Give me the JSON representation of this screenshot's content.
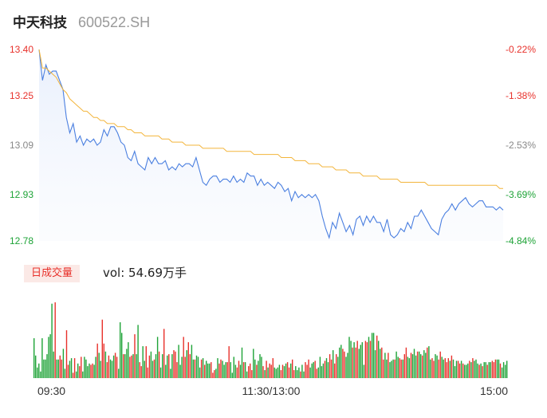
{
  "header": {
    "name": "中天科技",
    "code": "600522.SH"
  },
  "volume": {
    "badge": "日成交量",
    "label": "vol: 54.69万手"
  },
  "colors": {
    "price": "#4a7fe0",
    "avg": "#f3b53b",
    "up": "#e8312b",
    "down": "#1ea337",
    "label_neutral": "#888888"
  },
  "chart_data": [
    {
      "type": "line",
      "y_ticks": [
        "13.40",
        "13.25",
        "13.09",
        "12.93",
        "12.78"
      ],
      "pct_ticks": [
        "-0.22%",
        "-1.38%",
        "-2.53%",
        "-3.69%",
        "-4.84%"
      ],
      "ylim": [
        12.78,
        13.4
      ],
      "x_ticks": [
        "09:30",
        "11:30/13:00",
        "15:00"
      ],
      "grid": false,
      "series": [
        {
          "role": "price",
          "values": [
            13.4,
            13.3,
            13.35,
            13.32,
            13.33,
            13.33,
            13.3,
            13.27,
            13.18,
            13.13,
            13.16,
            13.1,
            13.12,
            13.09,
            13.11,
            13.1,
            13.11,
            13.09,
            13.1,
            13.14,
            13.12,
            13.15,
            13.15,
            13.13,
            13.1,
            13.09,
            13.05,
            13.04,
            13.07,
            13.03,
            13.02,
            13.01,
            13.05,
            13.03,
            13.05,
            13.03,
            13.03,
            13.04,
            13.01,
            13.02,
            13.01,
            13.03,
            13.02,
            13.03,
            13.03,
            13.02,
            13.05,
            13.01,
            12.97,
            12.96,
            12.98,
            12.99,
            12.99,
            12.97,
            12.98,
            12.98,
            12.97,
            12.99,
            12.97,
            12.98,
            12.97,
            13.0,
            12.99,
            12.99,
            12.96,
            12.98,
            12.96,
            12.97,
            12.96,
            12.95,
            12.97,
            12.96,
            12.94,
            12.95,
            12.91,
            12.94,
            12.92,
            12.93,
            12.92,
            12.93,
            12.92,
            12.93,
            12.91,
            12.86,
            12.82,
            12.79,
            12.84,
            12.82,
            12.87,
            12.84,
            12.81,
            12.83,
            12.8,
            12.85,
            12.86,
            12.83,
            12.86,
            12.84,
            12.86,
            12.84,
            12.84,
            12.81,
            12.85,
            12.8,
            12.79,
            12.8,
            12.82,
            12.81,
            12.84,
            12.82,
            12.86,
            12.86,
            12.88,
            12.86,
            12.84,
            12.82,
            12.81,
            12.8,
            12.85,
            12.87,
            12.88,
            12.9,
            12.88,
            12.9,
            12.91,
            12.92,
            12.9,
            12.89,
            12.9,
            12.91,
            12.91,
            12.89,
            12.89,
            12.89,
            12.88,
            12.89,
            12.88
          ],
          "color": "#4a7fe0"
        },
        {
          "role": "avg",
          "values": [
            13.4,
            13.34,
            13.34,
            13.33,
            13.32,
            13.31,
            13.29,
            13.27,
            13.26,
            13.24,
            13.23,
            13.22,
            13.21,
            13.2,
            13.2,
            13.19,
            13.18,
            13.18,
            13.17,
            13.17,
            13.16,
            13.16,
            13.16,
            13.15,
            13.15,
            13.15,
            13.14,
            13.14,
            13.13,
            13.13,
            13.13,
            13.12,
            13.12,
            13.12,
            13.12,
            13.12,
            13.11,
            13.11,
            13.11,
            13.1,
            13.1,
            13.1,
            13.1,
            13.09,
            13.09,
            13.09,
            13.09,
            13.09,
            13.08,
            13.08,
            13.08,
            13.08,
            13.08,
            13.08,
            13.08,
            13.07,
            13.07,
            13.07,
            13.07,
            13.07,
            13.07,
            13.07,
            13.07,
            13.06,
            13.06,
            13.06,
            13.06,
            13.06,
            13.06,
            13.06,
            13.06,
            13.05,
            13.05,
            13.05,
            13.05,
            13.04,
            13.04,
            13.04,
            13.04,
            13.03,
            13.03,
            13.03,
            13.03,
            13.02,
            13.02,
            13.02,
            13.02,
            13.01,
            13.01,
            13.01,
            13.01,
            13.0,
            13.0,
            13.0,
            13.0,
            12.99,
            12.99,
            12.99,
            12.99,
            12.99,
            12.98,
            12.98,
            12.98,
            12.98,
            12.98,
            12.98,
            12.97,
            12.97,
            12.97,
            12.97,
            12.97,
            12.97,
            12.97,
            12.97,
            12.96,
            12.96,
            12.96,
            12.96,
            12.96,
            12.96,
            12.96,
            12.96,
            12.96,
            12.96,
            12.96,
            12.96,
            12.96,
            12.96,
            12.96,
            12.96,
            12.96,
            12.96,
            12.96,
            12.96,
            12.96,
            12.95,
            12.95
          ],
          "color": "#f3b53b"
        }
      ]
    },
    {
      "type": "bar",
      "values": [
        30,
        17,
        8,
        11,
        5,
        30,
        14,
        14,
        18,
        31,
        33,
        56,
        20,
        57,
        14,
        14,
        17,
        14,
        22,
        7,
        36,
        10,
        13,
        15,
        4,
        15,
        5,
        11,
        9,
        16,
        5,
        16,
        14,
        9,
        11,
        10,
        11,
        10,
        16,
        26,
        19,
        13,
        44,
        26,
        20,
        12,
        17,
        14,
        13,
        17,
        19,
        16,
        7,
        42,
        34,
        18,
        18,
        22,
        27,
        16,
        17,
        18,
        33,
        18,
        40,
        12,
        9,
        24,
        13,
        24,
        8,
        17,
        20,
        13,
        14,
        18,
        31,
        20,
        8,
        18,
        37,
        10,
        17,
        18,
        7,
        18,
        21,
        20,
        12,
        25,
        10,
        16,
        31,
        16,
        21,
        27,
        18,
        25,
        14,
        14,
        17,
        16,
        8,
        14,
        15,
        10,
        13,
        11,
        11,
        12,
        4,
        6,
        7,
        15,
        11,
        14,
        13,
        10,
        12,
        12,
        24,
        12,
        4,
        16,
        10,
        8,
        13,
        10,
        23,
        12,
        12,
        5,
        9,
        11,
        6,
        22,
        14,
        10,
        13,
        18,
        16,
        9,
        6,
        13,
        8,
        11,
        10,
        15,
        8,
        7,
        8,
        10,
        6,
        10,
        9,
        11,
        12,
        8,
        11,
        14,
        6,
        9,
        6,
        8,
        5,
        10,
        5,
        12,
        10,
        14,
        8,
        11,
        12,
        13,
        7,
        8,
        16,
        9,
        11,
        13,
        15,
        12,
        18,
        14,
        21,
        11,
        18,
        16,
        23,
        25,
        22,
        20,
        16,
        19,
        31,
        28,
        23,
        27,
        23,
        28,
        22,
        25,
        27,
        10,
        28,
        27,
        31,
        28,
        34,
        34,
        21,
        32,
        28,
        22,
        23,
        14,
        19,
        14,
        19,
        12,
        13,
        14,
        14,
        20,
        16,
        15,
        14,
        14,
        18,
        23,
        16,
        15,
        19,
        18,
        22,
        17,
        20,
        20,
        18,
        17,
        21,
        19,
        23,
        24,
        14,
        15,
        13,
        18,
        17,
        14,
        20,
        16,
        14,
        15,
        12,
        15,
        13,
        17,
        14,
        9,
        13,
        13,
        11,
        13,
        11,
        10,
        10,
        11,
        13,
        12,
        15,
        13,
        14,
        11,
        10,
        11,
        9,
        12,
        12,
        10,
        12,
        12,
        13,
        12,
        14,
        14,
        14,
        11,
        8,
        12,
        10,
        13
      ],
      "colors": "dddddddddddddudduudduudduudduuddddduuddudduuduuddduuddduddduududduudduuudduddudduddudduuuddduuduuddudddududdduuudduuddduudddduuddudduuuddudddududuuudddduudduuduudddudduuuddduuddddudduuduuddduudddduduudddduududddudduuddudddudduuduuddudddudduddudduudduudduuududdduududddududddududdudduuudduddd"
    }
  ]
}
